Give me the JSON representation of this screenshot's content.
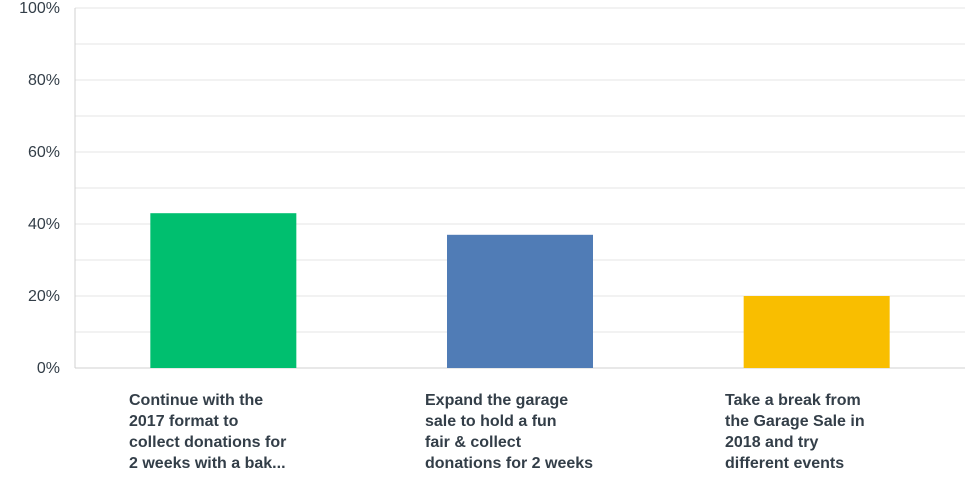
{
  "chart_data": {
    "type": "bar",
    "categories": [
      "Continue with the 2017 format to collect donations for 2 weeks with a bak...",
      "Expand the garage sale to hold a fun fair & collect donations for 2 weeks",
      "Take a break from the Garage Sale in 2018 and try different events"
    ],
    "category_lines": [
      [
        "Continue with the",
        "2017 format to",
        "collect donations for",
        "2 weeks with a bak..."
      ],
      [
        "Expand the garage",
        "sale to hold a fun",
        "fair & collect",
        "donations for 2 weeks"
      ],
      [
        "Take a break from",
        "the Garage Sale in",
        "2018 and try",
        "different events"
      ]
    ],
    "values": [
      43,
      37,
      20
    ],
    "colors": [
      "#00bf6f",
      "#507cb6",
      "#f9be00"
    ],
    "yticks": [
      "0%",
      "20%",
      "40%",
      "60%",
      "80%",
      "100%"
    ],
    "ylim": [
      0,
      100
    ],
    "grid": true,
    "title": "",
    "xlabel": "",
    "ylabel": ""
  }
}
